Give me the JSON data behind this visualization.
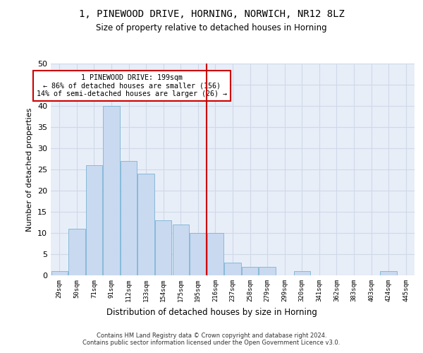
{
  "title1": "1, PINEWOOD DRIVE, HORNING, NORWICH, NR12 8LZ",
  "title2": "Size of property relative to detached houses in Horning",
  "xlabel": "Distribution of detached houses by size in Horning",
  "ylabel": "Number of detached properties",
  "categories": [
    "29sqm",
    "50sqm",
    "71sqm",
    "91sqm",
    "112sqm",
    "133sqm",
    "154sqm",
    "175sqm",
    "195sqm",
    "216sqm",
    "237sqm",
    "258sqm",
    "279sqm",
    "299sqm",
    "320sqm",
    "341sqm",
    "362sqm",
    "383sqm",
    "403sqm",
    "424sqm",
    "445sqm"
  ],
  "values": [
    1,
    11,
    26,
    40,
    27,
    24,
    13,
    12,
    10,
    10,
    3,
    2,
    2,
    0,
    1,
    0,
    0,
    0,
    0,
    1,
    0
  ],
  "bar_color": "#c9d9f0",
  "bar_edge_color": "#7ab4d4",
  "vline_x": 8.5,
  "vline_color": "#cc0000",
  "annotation_text": "1 PINEWOOD DRIVE: 199sqm\n← 86% of detached houses are smaller (156)\n14% of semi-detached houses are larger (26) →",
  "annotation_box_color": "#cc0000",
  "ylim": [
    0,
    50
  ],
  "yticks": [
    0,
    5,
    10,
    15,
    20,
    25,
    30,
    35,
    40,
    45,
    50
  ],
  "grid_color": "#d0d8e8",
  "bg_color": "#e8eef8",
  "footer1": "Contains HM Land Registry data © Crown copyright and database right 2024.",
  "footer2": "Contains public sector information licensed under the Open Government Licence v3.0."
}
